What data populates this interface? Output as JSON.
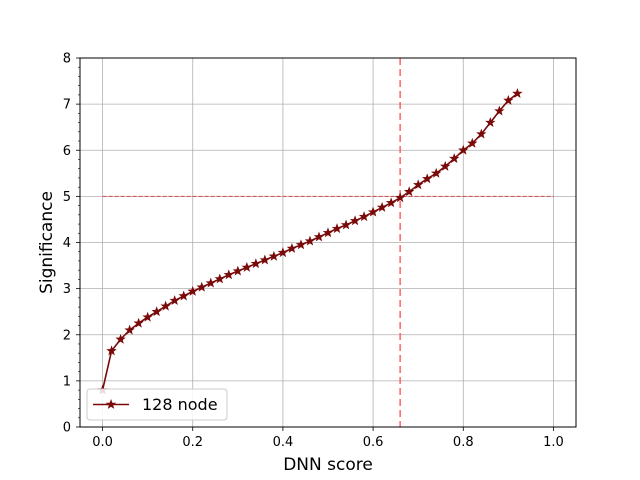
{
  "chart_data": {
    "type": "line",
    "title": "",
    "xlabel": "DNN score",
    "ylabel": "Significance",
    "xlim": [
      -0.05,
      1.05
    ],
    "ylim": [
      0,
      8
    ],
    "xticks": [
      0.0,
      0.2,
      0.4,
      0.6,
      0.8,
      1.0
    ],
    "xtick_labels": [
      "0.0",
      "0.2",
      "0.4",
      "0.6",
      "0.8",
      "1.0"
    ],
    "yticks": [
      0,
      1,
      2,
      3,
      4,
      5,
      6,
      7,
      8
    ],
    "ytick_labels": [
      "0",
      "1",
      "2",
      "3",
      "4",
      "5",
      "6",
      "7",
      "8"
    ],
    "grid": true,
    "legend_position": "lower-left",
    "series": [
      {
        "name": "128 node",
        "color": "#7a0a0a",
        "marker": "star",
        "x": [
          0.0,
          0.02,
          0.04,
          0.06,
          0.08,
          0.1,
          0.12,
          0.14,
          0.16,
          0.18,
          0.2,
          0.22,
          0.24,
          0.26,
          0.28,
          0.3,
          0.32,
          0.34,
          0.36,
          0.38,
          0.4,
          0.42,
          0.44,
          0.46,
          0.48,
          0.5,
          0.52,
          0.54,
          0.56,
          0.58,
          0.6,
          0.62,
          0.64,
          0.66,
          0.68,
          0.7,
          0.72,
          0.74,
          0.76,
          0.78,
          0.8,
          0.82,
          0.84,
          0.86,
          0.88,
          0.9,
          0.92
        ],
        "y": [
          0.8,
          1.65,
          1.9,
          2.1,
          2.25,
          2.38,
          2.5,
          2.62,
          2.74,
          2.84,
          2.94,
          3.03,
          3.12,
          3.21,
          3.3,
          3.38,
          3.46,
          3.54,
          3.62,
          3.7,
          3.78,
          3.87,
          3.95,
          4.03,
          4.12,
          4.21,
          4.3,
          4.38,
          4.47,
          4.56,
          4.66,
          4.76,
          4.86,
          4.97,
          5.1,
          5.25,
          5.38,
          5.5,
          5.65,
          5.82,
          6.0,
          6.15,
          6.35,
          6.6,
          6.85,
          7.08,
          7.23
        ]
      }
    ],
    "reference_lines": [
      {
        "orientation": "horizontal",
        "value": 5,
        "x_range": [
          0.0,
          1.0
        ],
        "color": "#d62728",
        "style": "dashed"
      },
      {
        "orientation": "vertical",
        "value": 0.66,
        "color": "#ff5555",
        "style": "dashed"
      }
    ]
  }
}
